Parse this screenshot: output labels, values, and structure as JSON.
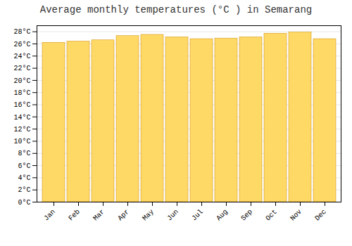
{
  "chart_data": {
    "type": "bar",
    "title": "Average monthly temperatures (°C ) in Semarang",
    "categories": [
      "Jan",
      "Feb",
      "Mar",
      "Apr",
      "May",
      "Jun",
      "Jul",
      "Aug",
      "Sep",
      "Oct",
      "Nov",
      "Dec"
    ],
    "values": [
      26.2,
      26.4,
      26.6,
      27.3,
      27.5,
      27.1,
      26.8,
      26.9,
      27.1,
      27.7,
      27.9,
      26.8
    ],
    "color": "#FFD966",
    "ylim": [
      0,
      29
    ],
    "yticks": [
      {
        "value": 0,
        "label": "0°C"
      },
      {
        "value": 2,
        "label": "2°C"
      },
      {
        "value": 4,
        "label": "4°C"
      },
      {
        "value": 6,
        "label": "6°C"
      },
      {
        "value": 8,
        "label": "8°C"
      },
      {
        "value": 10,
        "label": "10°C"
      },
      {
        "value": 12,
        "label": "12°C"
      },
      {
        "value": 14,
        "label": "14°C"
      },
      {
        "value": 16,
        "label": "16°C"
      },
      {
        "value": 18,
        "label": "18°C"
      },
      {
        "value": 20,
        "label": "20°C"
      },
      {
        "value": 22,
        "label": "22°C"
      },
      {
        "value": 24,
        "label": "24°C"
      },
      {
        "value": 26,
        "label": "26°C"
      },
      {
        "value": 28,
        "label": "28°C"
      }
    ],
    "grid": true
  }
}
